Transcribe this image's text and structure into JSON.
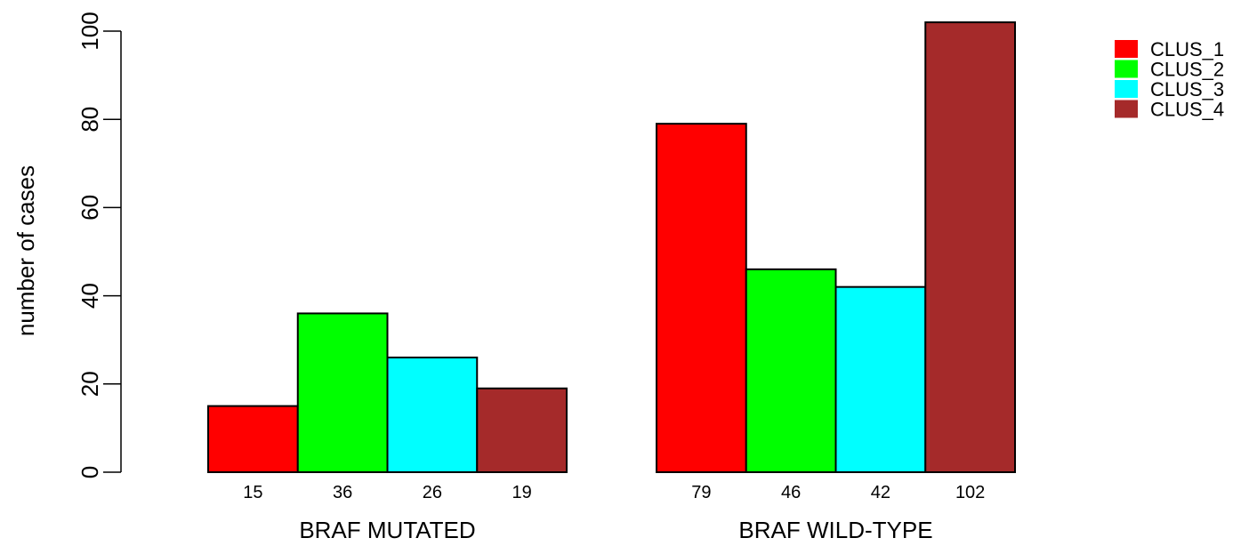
{
  "chart_data": {
    "type": "bar",
    "title": "",
    "xlabel": "",
    "ylabel": "number of cases",
    "ylim": [
      0,
      100
    ],
    "yticks": [
      0,
      20,
      40,
      60,
      80,
      100
    ],
    "grid": false,
    "legend_position": "top-right",
    "groups": [
      {
        "label": "BRAF MUTATED",
        "values": [
          15,
          36,
          26,
          19
        ]
      },
      {
        "label": "BRAF WILD-TYPE",
        "values": [
          79,
          46,
          42,
          102
        ]
      }
    ],
    "series": [
      {
        "name": "CLUS_1",
        "color": "#ff0000"
      },
      {
        "name": "CLUS_2",
        "color": "#00ff00"
      },
      {
        "name": "CLUS_3",
        "color": "#00ffff"
      },
      {
        "name": "CLUS_4",
        "color": "#a52a2a"
      }
    ]
  }
}
